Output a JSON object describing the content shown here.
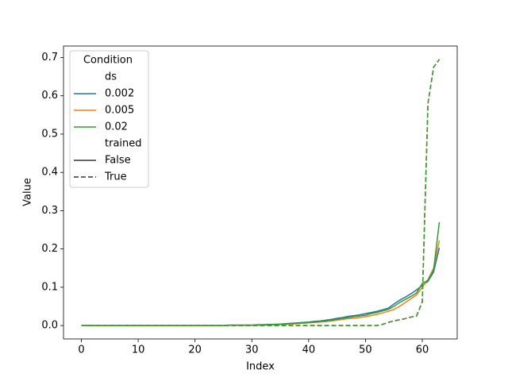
{
  "chart_data": {
    "type": "line",
    "x_label": "Index",
    "y_label": "Value",
    "xlim": [
      -3.15,
      66.15
    ],
    "ylim": [
      -0.035,
      0.73
    ],
    "xticks": [
      0,
      10,
      20,
      30,
      40,
      50,
      60
    ],
    "yticks": [
      {
        "value": 0,
        "label": "0.0"
      },
      0.1,
      0.2,
      0.3,
      0.4,
      0.5,
      0.6,
      0.7
    ],
    "x": [
      0,
      1,
      2,
      3,
      4,
      5,
      6,
      7,
      8,
      9,
      10,
      11,
      12,
      13,
      14,
      15,
      16,
      17,
      18,
      19,
      20,
      21,
      22,
      23,
      24,
      25,
      26,
      27,
      28,
      29,
      30,
      31,
      32,
      33,
      34,
      35,
      36,
      37,
      38,
      39,
      40,
      41,
      42,
      43,
      44,
      45,
      46,
      47,
      48,
      49,
      50,
      51,
      52,
      53,
      54,
      55,
      56,
      57,
      58,
      59,
      60,
      61,
      62,
      63
    ],
    "legend": {
      "title": "Condition",
      "hue_title": "ds",
      "style_title": "trained",
      "corner": "upper left",
      "style_color": "#333333"
    },
    "styles": [
      {
        "name": "False",
        "dash": "none"
      },
      {
        "name": "True",
        "dash": "6 3"
      }
    ],
    "series": [
      {
        "name": "0.002",
        "color": "#1f77b4",
        "lines": [
          [
            0,
            0,
            0,
            0,
            0,
            0,
            0,
            0,
            0,
            0,
            0,
            0,
            0,
            0,
            0,
            0,
            0,
            0,
            0,
            0,
            0,
            0,
            0,
            0,
            0,
            0,
            0.001,
            0.001,
            0.001,
            0.001,
            0.001,
            0.002,
            0.002,
            0.003,
            0.003,
            0.004,
            0.005,
            0.006,
            0.007,
            0.008,
            0.009,
            0.011,
            0.012,
            0.014,
            0.016,
            0.019,
            0.021,
            0.024,
            0.026,
            0.028,
            0.031,
            0.034,
            0.037,
            0.041,
            0.045,
            0.056,
            0.066,
            0.074,
            0.083,
            0.093,
            0.105,
            0.115,
            0.14,
            0.203
          ],
          [
            0,
            0,
            0,
            0,
            0,
            0,
            0,
            0,
            0,
            0,
            0,
            0,
            0,
            0,
            0,
            0,
            0,
            0,
            0,
            0,
            0,
            0,
            0,
            0,
            0,
            0,
            0,
            0,
            0,
            0,
            0,
            0,
            0,
            0,
            0,
            0,
            0,
            0,
            0,
            0,
            0,
            0,
            0,
            0,
            0,
            0,
            0,
            0,
            0,
            0,
            0,
            0,
            0,
            0.003,
            0.008,
            0.012,
            0.015,
            0.018,
            0.022,
            0.025,
            0.062,
            0.58,
            0.675,
            0.695
          ]
        ]
      },
      {
        "name": "0.005",
        "color": "#ff7f0e",
        "lines": [
          [
            0,
            0,
            0,
            0,
            0,
            0,
            0,
            0,
            0,
            0,
            0,
            0,
            0,
            0,
            0,
            0,
            0,
            0,
            0,
            0,
            0,
            0,
            0,
            0,
            0,
            0,
            0.001,
            0.001,
            0.001,
            0.001,
            0.001,
            0.001,
            0.001,
            0.002,
            0.002,
            0.003,
            0.003,
            0.004,
            0.005,
            0.006,
            0.007,
            0.008,
            0.009,
            0.01,
            0.012,
            0.014,
            0.016,
            0.018,
            0.019,
            0.021,
            0.023,
            0.026,
            0.029,
            0.033,
            0.037,
            0.042,
            0.05,
            0.06,
            0.07,
            0.08,
            0.1,
            0.12,
            0.15,
            0.222
          ],
          [
            0,
            0,
            0,
            0,
            0,
            0,
            0,
            0,
            0,
            0,
            0,
            0,
            0,
            0,
            0,
            0,
            0,
            0,
            0,
            0,
            0,
            0,
            0,
            0,
            0,
            0,
            0,
            0,
            0,
            0,
            0,
            0,
            0,
            0,
            0,
            0,
            0,
            0,
            0,
            0,
            0,
            0,
            0,
            0,
            0,
            0,
            0,
            0,
            0,
            0,
            0,
            0,
            0,
            0.003,
            0.008,
            0.012,
            0.015,
            0.018,
            0.022,
            0.025,
            0.061,
            0.58,
            0.675,
            0.695
          ]
        ]
      },
      {
        "name": "0.02",
        "color": "#2ca02c",
        "lines": [
          [
            0,
            0,
            0,
            0,
            0,
            0,
            0,
            0,
            0,
            0,
            0,
            0,
            0,
            0,
            0,
            0,
            0,
            0,
            0,
            0,
            0,
            0,
            0,
            0,
            0,
            0,
            0.001,
            0.001,
            0.001,
            0.001,
            0.001,
            0.002,
            0.002,
            0.002,
            0.003,
            0.003,
            0.004,
            0.005,
            0.006,
            0.007,
            0.008,
            0.009,
            0.011,
            0.012,
            0.014,
            0.016,
            0.019,
            0.021,
            0.023,
            0.025,
            0.027,
            0.031,
            0.034,
            0.038,
            0.042,
            0.05,
            0.06,
            0.068,
            0.076,
            0.085,
            0.11,
            0.118,
            0.145,
            0.27
          ],
          [
            0,
            0,
            0,
            0,
            0,
            0,
            0,
            0,
            0,
            0,
            0,
            0,
            0,
            0,
            0,
            0,
            0,
            0,
            0,
            0,
            0,
            0,
            0,
            0,
            0,
            0,
            0,
            0,
            0,
            0,
            0,
            0,
            0,
            0,
            0,
            0,
            0,
            0,
            0,
            0,
            0,
            0,
            0,
            0,
            0,
            0,
            0,
            0,
            0,
            0,
            0,
            0,
            0,
            0.003,
            0.008,
            0.012,
            0.015,
            0.018,
            0.022,
            0.025,
            0.062,
            0.58,
            0.675,
            0.695
          ]
        ]
      }
    ]
  }
}
